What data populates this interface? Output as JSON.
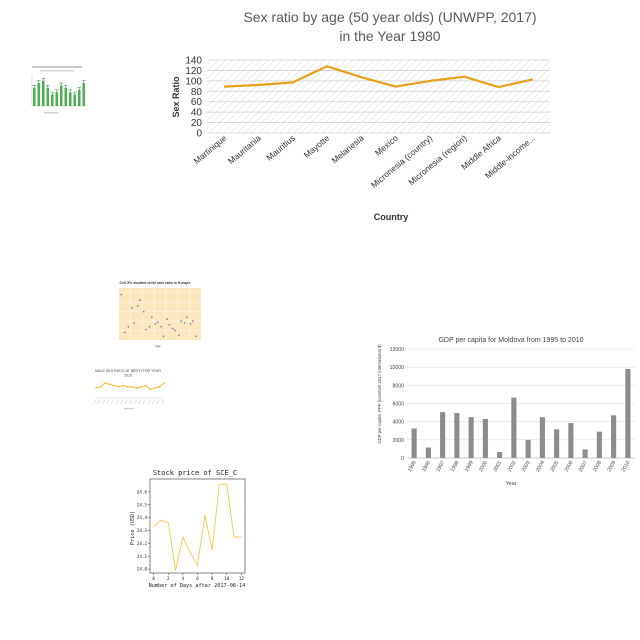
{
  "chart_data": [
    {
      "type": "line",
      "title_lines": [
        "Sex ratio by age (50 year olds) (UNWPP, 2017)",
        "in the Year 1980"
      ],
      "xlabel": "Country",
      "ylabel": "Sex Ratio",
      "ylim": [
        0,
        140
      ],
      "yticks": [
        0,
        20,
        40,
        60,
        80,
        100,
        120,
        140
      ],
      "categories": [
        "Martinique",
        "Mauritania",
        "Mauritius",
        "Mayotte",
        "Melanesia",
        "Mexico",
        "Micronesia (country)",
        "Micronesia (region)",
        "Middle Africa",
        "Middle-income..."
      ],
      "values": [
        89,
        92,
        97,
        128,
        107,
        89,
        100,
        108,
        88,
        103
      ],
      "color": "#e3a21a",
      "grid": true
    },
    {
      "type": "bar",
      "title": "",
      "xlabel": "",
      "ylabel": "",
      "ylim": [
        0,
        14
      ],
      "categories": [
        "",
        "",
        "",
        "",
        "",
        "",
        "",
        "",
        "",
        "",
        "",
        ""
      ],
      "values": [
        8,
        10,
        11,
        8,
        5,
        6,
        9,
        8,
        6,
        5,
        7,
        10
      ],
      "color": "#4caf50"
    },
    {
      "type": "scatter",
      "title": "Cell 5% stunted child care ratio in Europe",
      "xlabel": "Age",
      "ylabel": "",
      "xlim": [
        1950,
        2020
      ],
      "x": [
        1952,
        1955,
        1958,
        1961,
        1963,
        1966,
        1968,
        1971,
        1973,
        1976,
        1978,
        1981,
        1983,
        1986,
        1988,
        1991,
        1993,
        1996,
        1998,
        2001,
        2003,
        2006,
        2008,
        2011,
        2013,
        2016
      ],
      "y": [
        48,
        8,
        14,
        34,
        18,
        36,
        42,
        30,
        11,
        14,
        24,
        17,
        19,
        14,
        4,
        22,
        16,
        12,
        10,
        5,
        20,
        18,
        24,
        17,
        20,
        4
      ],
      "background": "#fbe6be",
      "marker_color": "#7b86b0"
    },
    {
      "type": "line",
      "title_lines": [
        "MALE SEX RATIO AT BIRTH FOR YEAR",
        "2016"
      ],
      "xlabel": "",
      "ylabel": "",
      "categories": [
        "",
        "",
        "",
        "",
        "",
        "",
        "",
        "",
        "",
        "",
        "",
        "",
        "",
        "",
        "",
        ""
      ],
      "values": [
        18,
        19,
        22,
        21,
        20,
        19,
        20,
        19,
        19,
        18,
        19,
        20,
        17,
        18,
        19,
        22
      ],
      "ylim": [
        10,
        26
      ],
      "color": "#f4b41a"
    },
    {
      "type": "line",
      "title": "Stock price of SCE_C",
      "xlabel": "Number of Days after 2017-06-14",
      "ylabel": "Price (USD)",
      "xlim": [
        -0.5,
        12.5
      ],
      "ylim": [
        23.97,
        24.7
      ],
      "xticks": [
        0,
        2,
        4,
        6,
        8,
        10,
        12
      ],
      "yticks": [
        24.0,
        24.1,
        24.2,
        24.3,
        24.4,
        24.5,
        24.6
      ],
      "x": [
        0,
        1,
        2,
        3,
        4,
        5,
        6,
        7,
        8,
        9,
        10,
        11,
        12
      ],
      "values": [
        24.33,
        24.38,
        24.36,
        23.99,
        24.25,
        24.13,
        24.03,
        24.42,
        24.15,
        24.66,
        24.66,
        24.25,
        24.25
      ],
      "color": "#f2c94c"
    },
    {
      "type": "bar",
      "title": "GDP per capita for Moldova from 1995 to 2010",
      "xlabel": "Year",
      "ylabel": "GDP per capita, PPP (constant 2017 international $)",
      "ylim": [
        0,
        12000
      ],
      "yticks": [
        0,
        2000,
        4000,
        6000,
        8000,
        10000,
        12000
      ],
      "categories": [
        "1995",
        "1996",
        "1997",
        "1998",
        "1999",
        "2000",
        "2001",
        "2002",
        "2003",
        "2004",
        "2005",
        "2006",
        "2007",
        "2008",
        "2009",
        "2010"
      ],
      "values": [
        3250,
        1150,
        5050,
        4950,
        4500,
        4300,
        650,
        6650,
        2000,
        4500,
        3150,
        3850,
        950,
        2900,
        4700,
        9800
      ],
      "color": "#8c8c8c"
    }
  ]
}
